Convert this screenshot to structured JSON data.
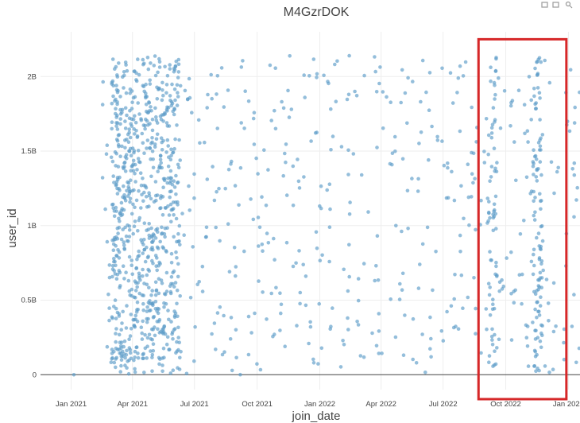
{
  "chart_data": {
    "type": "scatter",
    "title": "M4GzrDOK",
    "xlabel": "join_date",
    "ylabel": "user_id",
    "xlim": [
      "2020-11-17",
      "2023-01-18"
    ],
    "ylim": [
      -100000000,
      2300000000
    ],
    "grid": true,
    "x_ticks": [
      "2021-01-01",
      "2021-04-01",
      "2021-07-01",
      "2021-10-01",
      "2022-01-01",
      "2022-04-01",
      "2022-07-01",
      "2022-10-01",
      "2023-01-01"
    ],
    "x_tick_labels": [
      "Jan 2021",
      "Apr 2021",
      "Jul 2021",
      "Oct 2021",
      "Jan 2022",
      "Apr 2022",
      "Jul 2022",
      "Oct 2022",
      "Jan 2023"
    ],
    "y_ticks": [
      0,
      500000000,
      1000000000,
      1500000000,
      2000000000
    ],
    "y_tick_labels": [
      "0",
      "0.5B",
      "1B",
      "1.5B",
      "2B"
    ],
    "marker_color": "#5b9bc8",
    "marker_opacity": 0.65,
    "point_count": 1400,
    "density_distribution": {
      "cluster_1": {
        "from": "2021-03-01",
        "to": "2021-06-10",
        "share": 0.5
      },
      "cluster_2": {
        "from": "2022-09-05",
        "to": "2022-09-18",
        "share": 0.04
      },
      "cluster_3": {
        "from": "2022-11-10",
        "to": "2022-11-25",
        "share": 0.07
      },
      "background": {
        "from": "2021-02-15",
        "to": "2023-01-18",
        "share": 0.39
      }
    },
    "outlier_points": [
      {
        "x": "2021-01-05",
        "y": 0
      }
    ],
    "highlight_box": {
      "x_from": "2022-08-22",
      "x_to": "2022-12-29",
      "y_from": -100000000,
      "y_to": 2250000000,
      "color": "#d62728"
    }
  }
}
